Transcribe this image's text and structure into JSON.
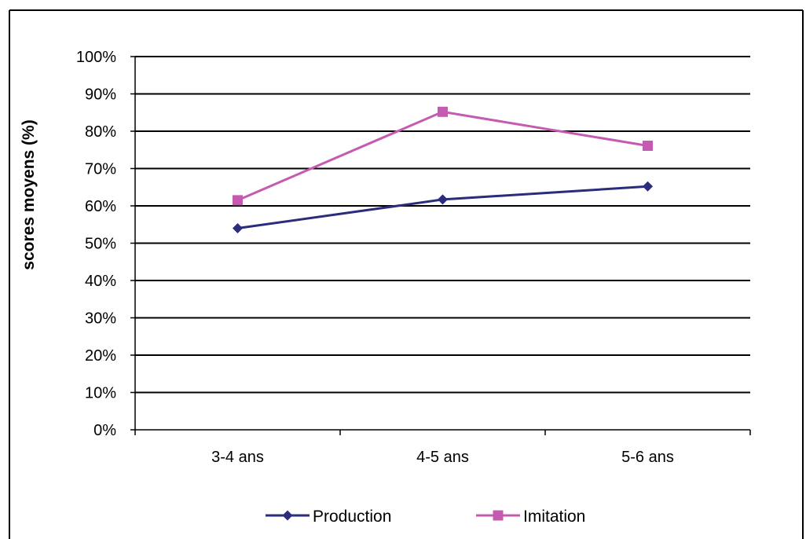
{
  "chart_data": {
    "type": "line",
    "title": "",
    "xlabel": "",
    "ylabel": "scores moyens (%)",
    "categories": [
      "3-4 ans",
      "4-5 ans",
      "5-6 ans"
    ],
    "ylim": [
      0,
      100
    ],
    "yticks": [
      0,
      10,
      20,
      30,
      40,
      50,
      60,
      70,
      80,
      90,
      100
    ],
    "ytick_labels": [
      "0%",
      "10%",
      "20%",
      "30%",
      "40%",
      "50%",
      "60%",
      "70%",
      "80%",
      "90%",
      "100%"
    ],
    "grid": true,
    "legend_position": "bottom",
    "series": [
      {
        "name": "Production",
        "values": [
          54,
          61.7,
          65.2
        ],
        "color": "#2b2c7c",
        "marker": "diamond"
      },
      {
        "name": "Imitation",
        "values": [
          61.5,
          85.2,
          76.1
        ],
        "color": "#c55bb0",
        "marker": "square"
      }
    ]
  }
}
